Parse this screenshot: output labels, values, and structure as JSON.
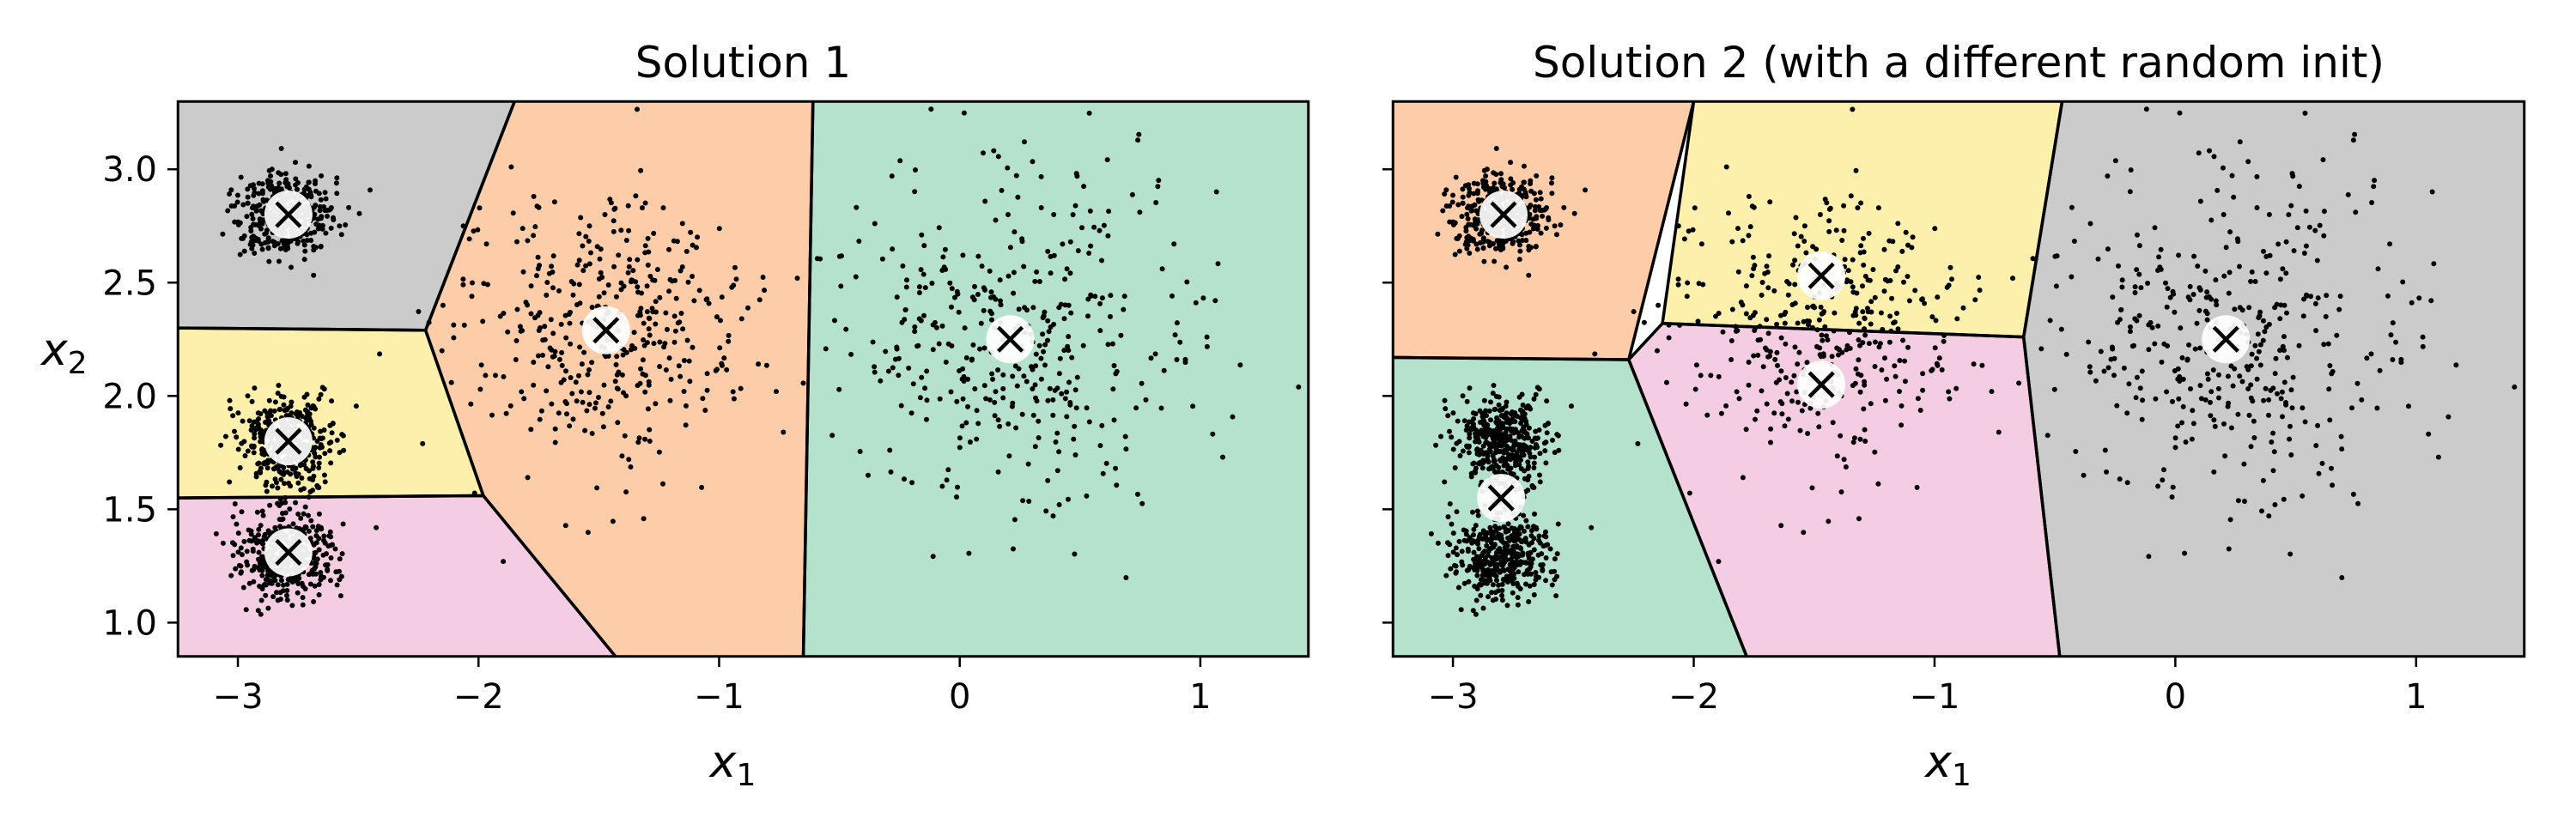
{
  "chart_data": [
    {
      "type": "scatter",
      "title": "Solution 1",
      "xlabel": "x",
      "xlabel_subscript": "1",
      "ylabel": "x",
      "ylabel_subscript": "2",
      "xlim": [
        -3.25,
        1.45
      ],
      "ylim": [
        0.85,
        3.3
      ],
      "xticks": [
        -3,
        -2,
        -1,
        0,
        1
      ],
      "xtick_labels": [
        "−3",
        "−2",
        "−1",
        "0",
        "1"
      ],
      "yticks": [
        1.0,
        1.5,
        2.0,
        2.5,
        3.0
      ],
      "ytick_labels": [
        "1.0",
        "1.5",
        "2.0",
        "2.5",
        "3.0"
      ],
      "show_yticklabels": true,
      "grid": false,
      "centroids": [
        [
          -2.79,
          2.8
        ],
        [
          -2.79,
          1.8
        ],
        [
          -2.79,
          1.31
        ],
        [
          -1.47,
          2.29
        ],
        [
          0.21,
          2.25
        ]
      ],
      "clusters": [
        {
          "center": [
            -2.8,
            2.8
          ],
          "spread": 0.1,
          "n": 400
        },
        {
          "center": [
            -2.8,
            1.8
          ],
          "spread": 0.1,
          "n": 400
        },
        {
          "center": [
            -2.8,
            1.3
          ],
          "spread": 0.1,
          "n": 400
        },
        {
          "center": [
            -1.47,
            2.29
          ],
          "spread": 0.3,
          "n": 400
        },
        {
          "center": [
            0.21,
            2.25
          ],
          "spread": 0.38,
          "n": 400
        }
      ],
      "regions": [
        {
          "color": "#cbcbcb",
          "polygon": [
            [
              -3.25,
              3.3
            ],
            [
              -1.85,
              3.3
            ],
            [
              -2.22,
              2.29
            ],
            [
              -3.25,
              2.3
            ]
          ]
        },
        {
          "color": "#fdf0ac",
          "polygon": [
            [
              -3.25,
              2.3
            ],
            [
              -2.22,
              2.29
            ],
            [
              -1.98,
              1.56
            ],
            [
              -3.25,
              1.55
            ]
          ]
        },
        {
          "color": "#f5cde3",
          "polygon": [
            [
              -3.25,
              1.55
            ],
            [
              -1.98,
              1.56
            ],
            [
              -1.43,
              0.85
            ],
            [
              -3.25,
              0.85
            ]
          ]
        },
        {
          "color": "#fdcca8",
          "polygon": [
            [
              -1.85,
              3.3
            ],
            [
              -0.61,
              3.3
            ],
            [
              -0.65,
              0.85
            ],
            [
              -1.43,
              0.85
            ],
            [
              -1.98,
              1.56
            ],
            [
              -2.22,
              2.29
            ]
          ]
        },
        {
          "color": "#b4e2cd",
          "polygon": [
            [
              -0.61,
              3.3
            ],
            [
              1.45,
              3.3
            ],
            [
              1.45,
              0.85
            ],
            [
              -0.65,
              0.85
            ]
          ]
        }
      ]
    },
    {
      "type": "scatter",
      "title": "Solution 2 (with a different random init)",
      "xlabel": "x",
      "xlabel_subscript": "1",
      "ylabel": "",
      "xlim": [
        -3.25,
        1.45
      ],
      "ylim": [
        0.85,
        3.3
      ],
      "xticks": [
        -3,
        -2,
        -1,
        0,
        1
      ],
      "xtick_labels": [
        "−3",
        "−2",
        "−1",
        "0",
        "1"
      ],
      "yticks": [
        1.0,
        1.5,
        2.0,
        2.5,
        3.0
      ],
      "show_yticklabels": false,
      "grid": false,
      "centroids": [
        [
          -2.79,
          2.8
        ],
        [
          -2.8,
          1.55
        ],
        [
          -1.47,
          2.53
        ],
        [
          -1.47,
          2.05
        ],
        [
          0.21,
          2.25
        ]
      ],
      "clusters": [
        {
          "center": [
            -2.8,
            2.8
          ],
          "spread": 0.1,
          "n": 400
        },
        {
          "center": [
            -2.8,
            1.8
          ],
          "spread": 0.1,
          "n": 400
        },
        {
          "center": [
            -2.8,
            1.3
          ],
          "spread": 0.1,
          "n": 400
        },
        {
          "center": [
            -1.47,
            2.29
          ],
          "spread": 0.3,
          "n": 400
        },
        {
          "center": [
            0.21,
            2.25
          ],
          "spread": 0.38,
          "n": 400
        }
      ],
      "regions": [
        {
          "color": "#fdcca8",
          "polygon": [
            [
              -3.25,
              3.3
            ],
            [
              -2.0,
              3.3
            ],
            [
              -2.27,
              2.16
            ],
            [
              -3.25,
              2.17
            ]
          ]
        },
        {
          "color": "#b4e2cd",
          "polygon": [
            [
              -3.25,
              2.17
            ],
            [
              -2.27,
              2.16
            ],
            [
              -1.78,
              0.85
            ],
            [
              -3.25,
              0.85
            ]
          ]
        },
        {
          "color": "#fdf0ac",
          "polygon": [
            [
              -2.0,
              3.3
            ],
            [
              -0.47,
              3.3
            ],
            [
              -0.63,
              2.26
            ],
            [
              -2.13,
              2.32
            ]
          ]
        },
        {
          "color": "#f5cde3",
          "polygon": [
            [
              -2.13,
              2.32
            ],
            [
              -0.63,
              2.26
            ],
            [
              -0.48,
              0.85
            ],
            [
              -1.78,
              0.85
            ],
            [
              -2.27,
              2.16
            ]
          ]
        },
        {
          "color": "#cbcbcb",
          "polygon": [
            [
              -0.47,
              3.3
            ],
            [
              1.45,
              3.3
            ],
            [
              1.45,
              0.85
            ],
            [
              -0.48,
              0.85
            ],
            [
              -0.63,
              2.26
            ]
          ]
        }
      ]
    }
  ]
}
